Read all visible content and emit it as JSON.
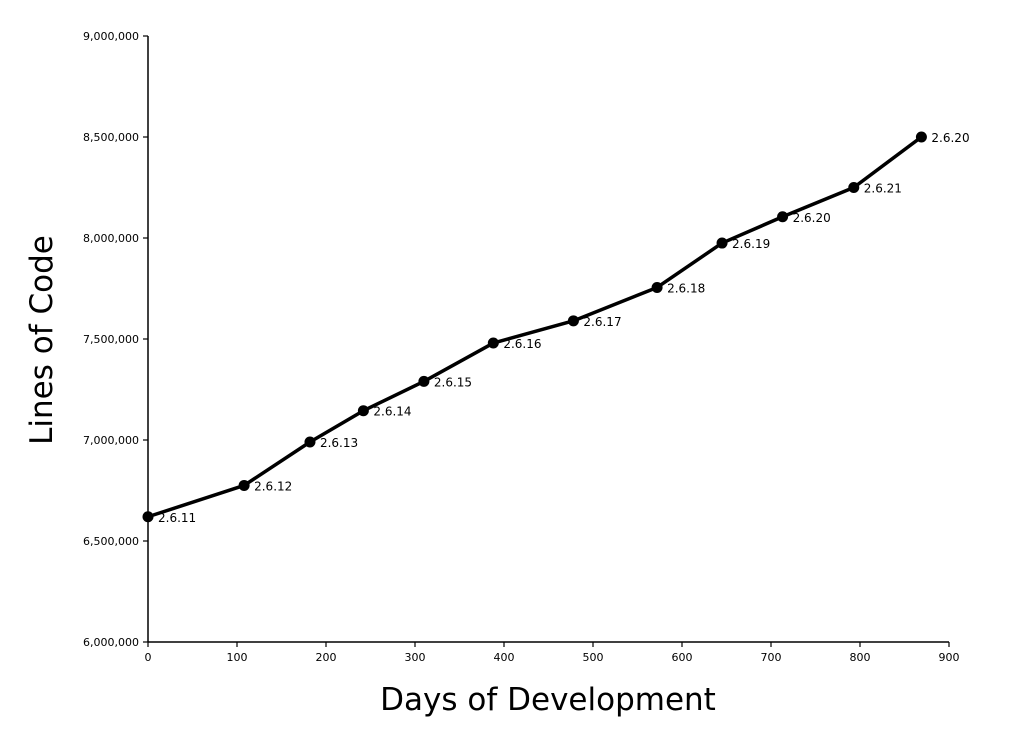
{
  "chart_data": {
    "type": "line",
    "title": "",
    "xlabel": "Days of Development",
    "ylabel": "Lines of Code",
    "xlim": [
      0,
      900
    ],
    "ylim": [
      6000000,
      9000000
    ],
    "x_ticks": [
      0,
      100,
      200,
      300,
      400,
      500,
      600,
      700,
      800,
      900
    ],
    "y_ticks": [
      6000000,
      6500000,
      7000000,
      7500000,
      8000000,
      8500000,
      9000000
    ],
    "x_tick_labels": [
      "0",
      "100",
      "200",
      "300",
      "400",
      "500",
      "600",
      "700",
      "800",
      "900"
    ],
    "y_tick_labels": [
      "6,000,000",
      "6,500,000",
      "7,000,000",
      "7,500,000",
      "8,000,000",
      "8,500,000",
      "9,000,000"
    ],
    "grid": false,
    "legend": "none",
    "series": [
      {
        "color": "#000000",
        "points": [
          {
            "x": 0,
            "y": 6620000,
            "label": "2.6.11"
          },
          {
            "x": 108,
            "y": 6775000,
            "label": "2.6.12"
          },
          {
            "x": 182,
            "y": 6990000,
            "label": "2.6.13"
          },
          {
            "x": 242,
            "y": 7145000,
            "label": "2.6.14"
          },
          {
            "x": 310,
            "y": 7290000,
            "label": "2.6.15"
          },
          {
            "x": 388,
            "y": 7480000,
            "label": "2.6.16"
          },
          {
            "x": 478,
            "y": 7590000,
            "label": "2.6.17"
          },
          {
            "x": 572,
            "y": 7755000,
            "label": "2.6.18"
          },
          {
            "x": 645,
            "y": 7975000,
            "label": "2.6.19"
          },
          {
            "x": 713,
            "y": 8105000,
            "label": "2.6.20"
          },
          {
            "x": 793,
            "y": 8250000,
            "label": "2.6.21"
          },
          {
            "x": 869,
            "y": 8500000,
            "label": "2.6.20"
          }
        ]
      }
    ]
  }
}
